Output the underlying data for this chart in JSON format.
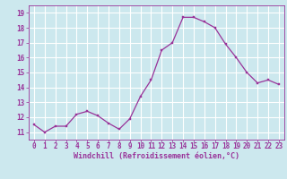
{
  "x": [
    0,
    1,
    2,
    3,
    4,
    5,
    6,
    7,
    8,
    9,
    10,
    11,
    12,
    13,
    14,
    15,
    16,
    17,
    18,
    19,
    20,
    21,
    22,
    23
  ],
  "y": [
    11.5,
    11.0,
    11.4,
    11.4,
    12.2,
    12.4,
    12.1,
    11.6,
    11.2,
    11.9,
    13.4,
    14.5,
    16.5,
    17.0,
    18.7,
    18.7,
    18.4,
    18.0,
    16.9,
    16.0,
    15.0,
    14.3,
    14.5,
    14.2
  ],
  "line_color": "#993399",
  "marker_color": "#993399",
  "bg_color": "#cce8ee",
  "grid_color": "#ffffff",
  "xlabel": "Windchill (Refroidissement éolien,°C)",
  "xlabel_color": "#993399",
  "tick_color": "#993399",
  "ylim": [
    10.5,
    19.5
  ],
  "xlim": [
    -0.5,
    23.5
  ],
  "yticks": [
    11,
    12,
    13,
    14,
    15,
    16,
    17,
    18,
    19
  ],
  "xticks": [
    0,
    1,
    2,
    3,
    4,
    5,
    6,
    7,
    8,
    9,
    10,
    11,
    12,
    13,
    14,
    15,
    16,
    17,
    18,
    19,
    20,
    21,
    22,
    23
  ],
  "tick_fontsize": 5.5,
  "xlabel_fontsize": 6.0
}
